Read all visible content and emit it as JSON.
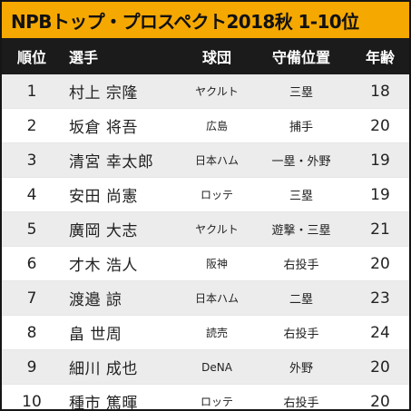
{
  "title": "NPBトップ・プロスペクト2018秋 1-10位",
  "headers": {
    "rank": "順位",
    "name": "選手",
    "team": "球団",
    "position": "守備位置",
    "age": "年齢"
  },
  "rows": [
    {
      "rank": "1",
      "name": "村上 宗隆",
      "team": "ヤクルト",
      "position": "三塁",
      "age": "18"
    },
    {
      "rank": "2",
      "name": "坂倉 将吾",
      "team": "広島",
      "position": "捕手",
      "age": "20"
    },
    {
      "rank": "3",
      "name": "清宮 幸太郎",
      "team": "日本ハム",
      "position": "一塁・外野",
      "age": "19"
    },
    {
      "rank": "4",
      "name": "安田 尚憲",
      "team": "ロッテ",
      "position": "三塁",
      "age": "19"
    },
    {
      "rank": "5",
      "name": "廣岡 大志",
      "team": "ヤクルト",
      "position": "遊撃・三塁",
      "age": "21"
    },
    {
      "rank": "6",
      "name": "才木 浩人",
      "team": "阪神",
      "position": "右投手",
      "age": "20"
    },
    {
      "rank": "7",
      "name": "渡邉 諒",
      "team": "日本ハム",
      "position": "二塁",
      "age": "23"
    },
    {
      "rank": "8",
      "name": "畠 世周",
      "team": "読売",
      "position": "右投手",
      "age": "24"
    },
    {
      "rank": "9",
      "name": "細川 成也",
      "team": "DeNA",
      "position": "外野",
      "age": "20"
    },
    {
      "rank": "10",
      "name": "種市 篤暉",
      "team": "ロッテ",
      "position": "右投手",
      "age": "20"
    }
  ],
  "colors": {
    "title_bg": "#f5a800",
    "header_bg": "#1b1b1b",
    "row_alt_bg": "#ececec",
    "row_plain_bg": "#ffffff",
    "border": "#151515"
  }
}
